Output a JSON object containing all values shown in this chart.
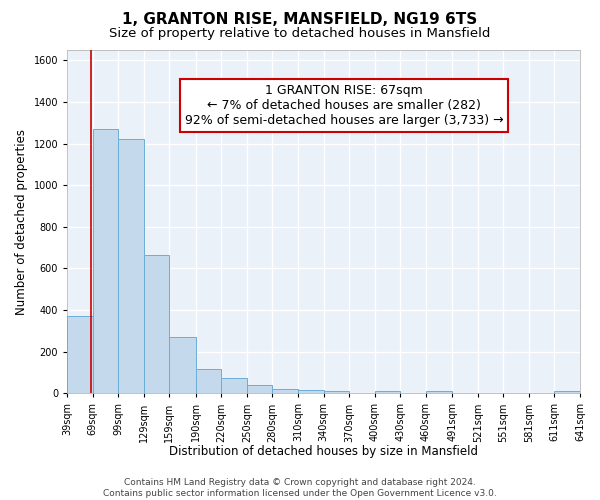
{
  "title": "1, GRANTON RISE, MANSFIELD, NG19 6TS",
  "subtitle": "Size of property relative to detached houses in Mansfield",
  "xlabel": "Distribution of detached houses by size in Mansfield",
  "ylabel": "Number of detached properties",
  "bin_labels": [
    "39sqm",
    "69sqm",
    "99sqm",
    "129sqm",
    "159sqm",
    "190sqm",
    "220sqm",
    "250sqm",
    "280sqm",
    "310sqm",
    "340sqm",
    "370sqm",
    "400sqm",
    "430sqm",
    "460sqm",
    "491sqm",
    "521sqm",
    "551sqm",
    "581sqm",
    "611sqm",
    "641sqm"
  ],
  "bin_edges": [
    39,
    69,
    99,
    129,
    159,
    190,
    220,
    250,
    280,
    310,
    340,
    370,
    400,
    430,
    460,
    491,
    521,
    551,
    581,
    611,
    641
  ],
  "bar_heights": [
    370,
    1270,
    1220,
    665,
    270,
    115,
    75,
    40,
    20,
    15,
    10,
    0,
    10,
    0,
    10,
    0,
    0,
    0,
    0,
    10
  ],
  "bar_color": "#c5d9ec",
  "bar_edgecolor": "#6aaed6",
  "vline_x": 67,
  "vline_color": "#cc0000",
  "annotation_line1": "1 GRANTON RISE: 67sqm",
  "annotation_line2": "← 7% of detached houses are smaller (282)",
  "annotation_line3": "92% of semi-detached houses are larger (3,733) →",
  "annotation_box_edgecolor": "#cc0000",
  "annotation_box_facecolor": "#ffffff",
  "ylim": [
    0,
    1650
  ],
  "yticks": [
    0,
    200,
    400,
    600,
    800,
    1000,
    1200,
    1400,
    1600
  ],
  "footer_text": "Contains HM Land Registry data © Crown copyright and database right 2024.\nContains public sector information licensed under the Open Government Licence v3.0.",
  "bg_color": "#ffffff",
  "plot_bg_color": "#eaf1f8",
  "grid_color": "#ffffff",
  "title_fontsize": 11,
  "subtitle_fontsize": 9.5,
  "axis_label_fontsize": 8.5,
  "tick_fontsize": 7,
  "footer_fontsize": 6.5,
  "annotation_fontsize": 9
}
